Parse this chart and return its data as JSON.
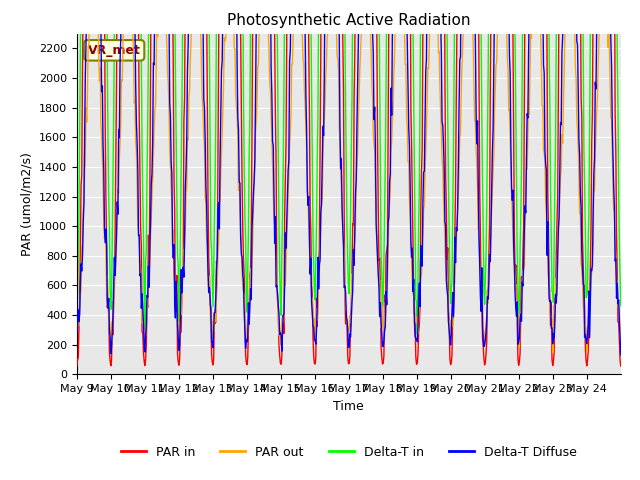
{
  "title": "Photosynthetic Active Radiation",
  "xlabel": "Time",
  "ylabel": "PAR (umol/m2/s)",
  "legend_label": "VR_met",
  "series_labels": [
    "PAR in",
    "PAR out",
    "Delta-T in",
    "Delta-T Diffuse"
  ],
  "series_colors": [
    "red",
    "orange",
    "lime",
    "blue"
  ],
  "ylim": [
    0,
    2300
  ],
  "yticks": [
    0,
    200,
    400,
    600,
    800,
    1000,
    1200,
    1400,
    1600,
    1800,
    2000,
    2200
  ],
  "xtick_labels": [
    "May 9",
    "May 10",
    "May 11",
    "May 12",
    "May 13",
    "May 14",
    "May 15",
    "May 16",
    "May 17",
    "May 18",
    "May 19",
    "May 20",
    "May 21",
    "May 22",
    "May 23",
    "May 24"
  ],
  "background_color": "#e8e8e8",
  "n_days": 16,
  "points_per_day": 48
}
